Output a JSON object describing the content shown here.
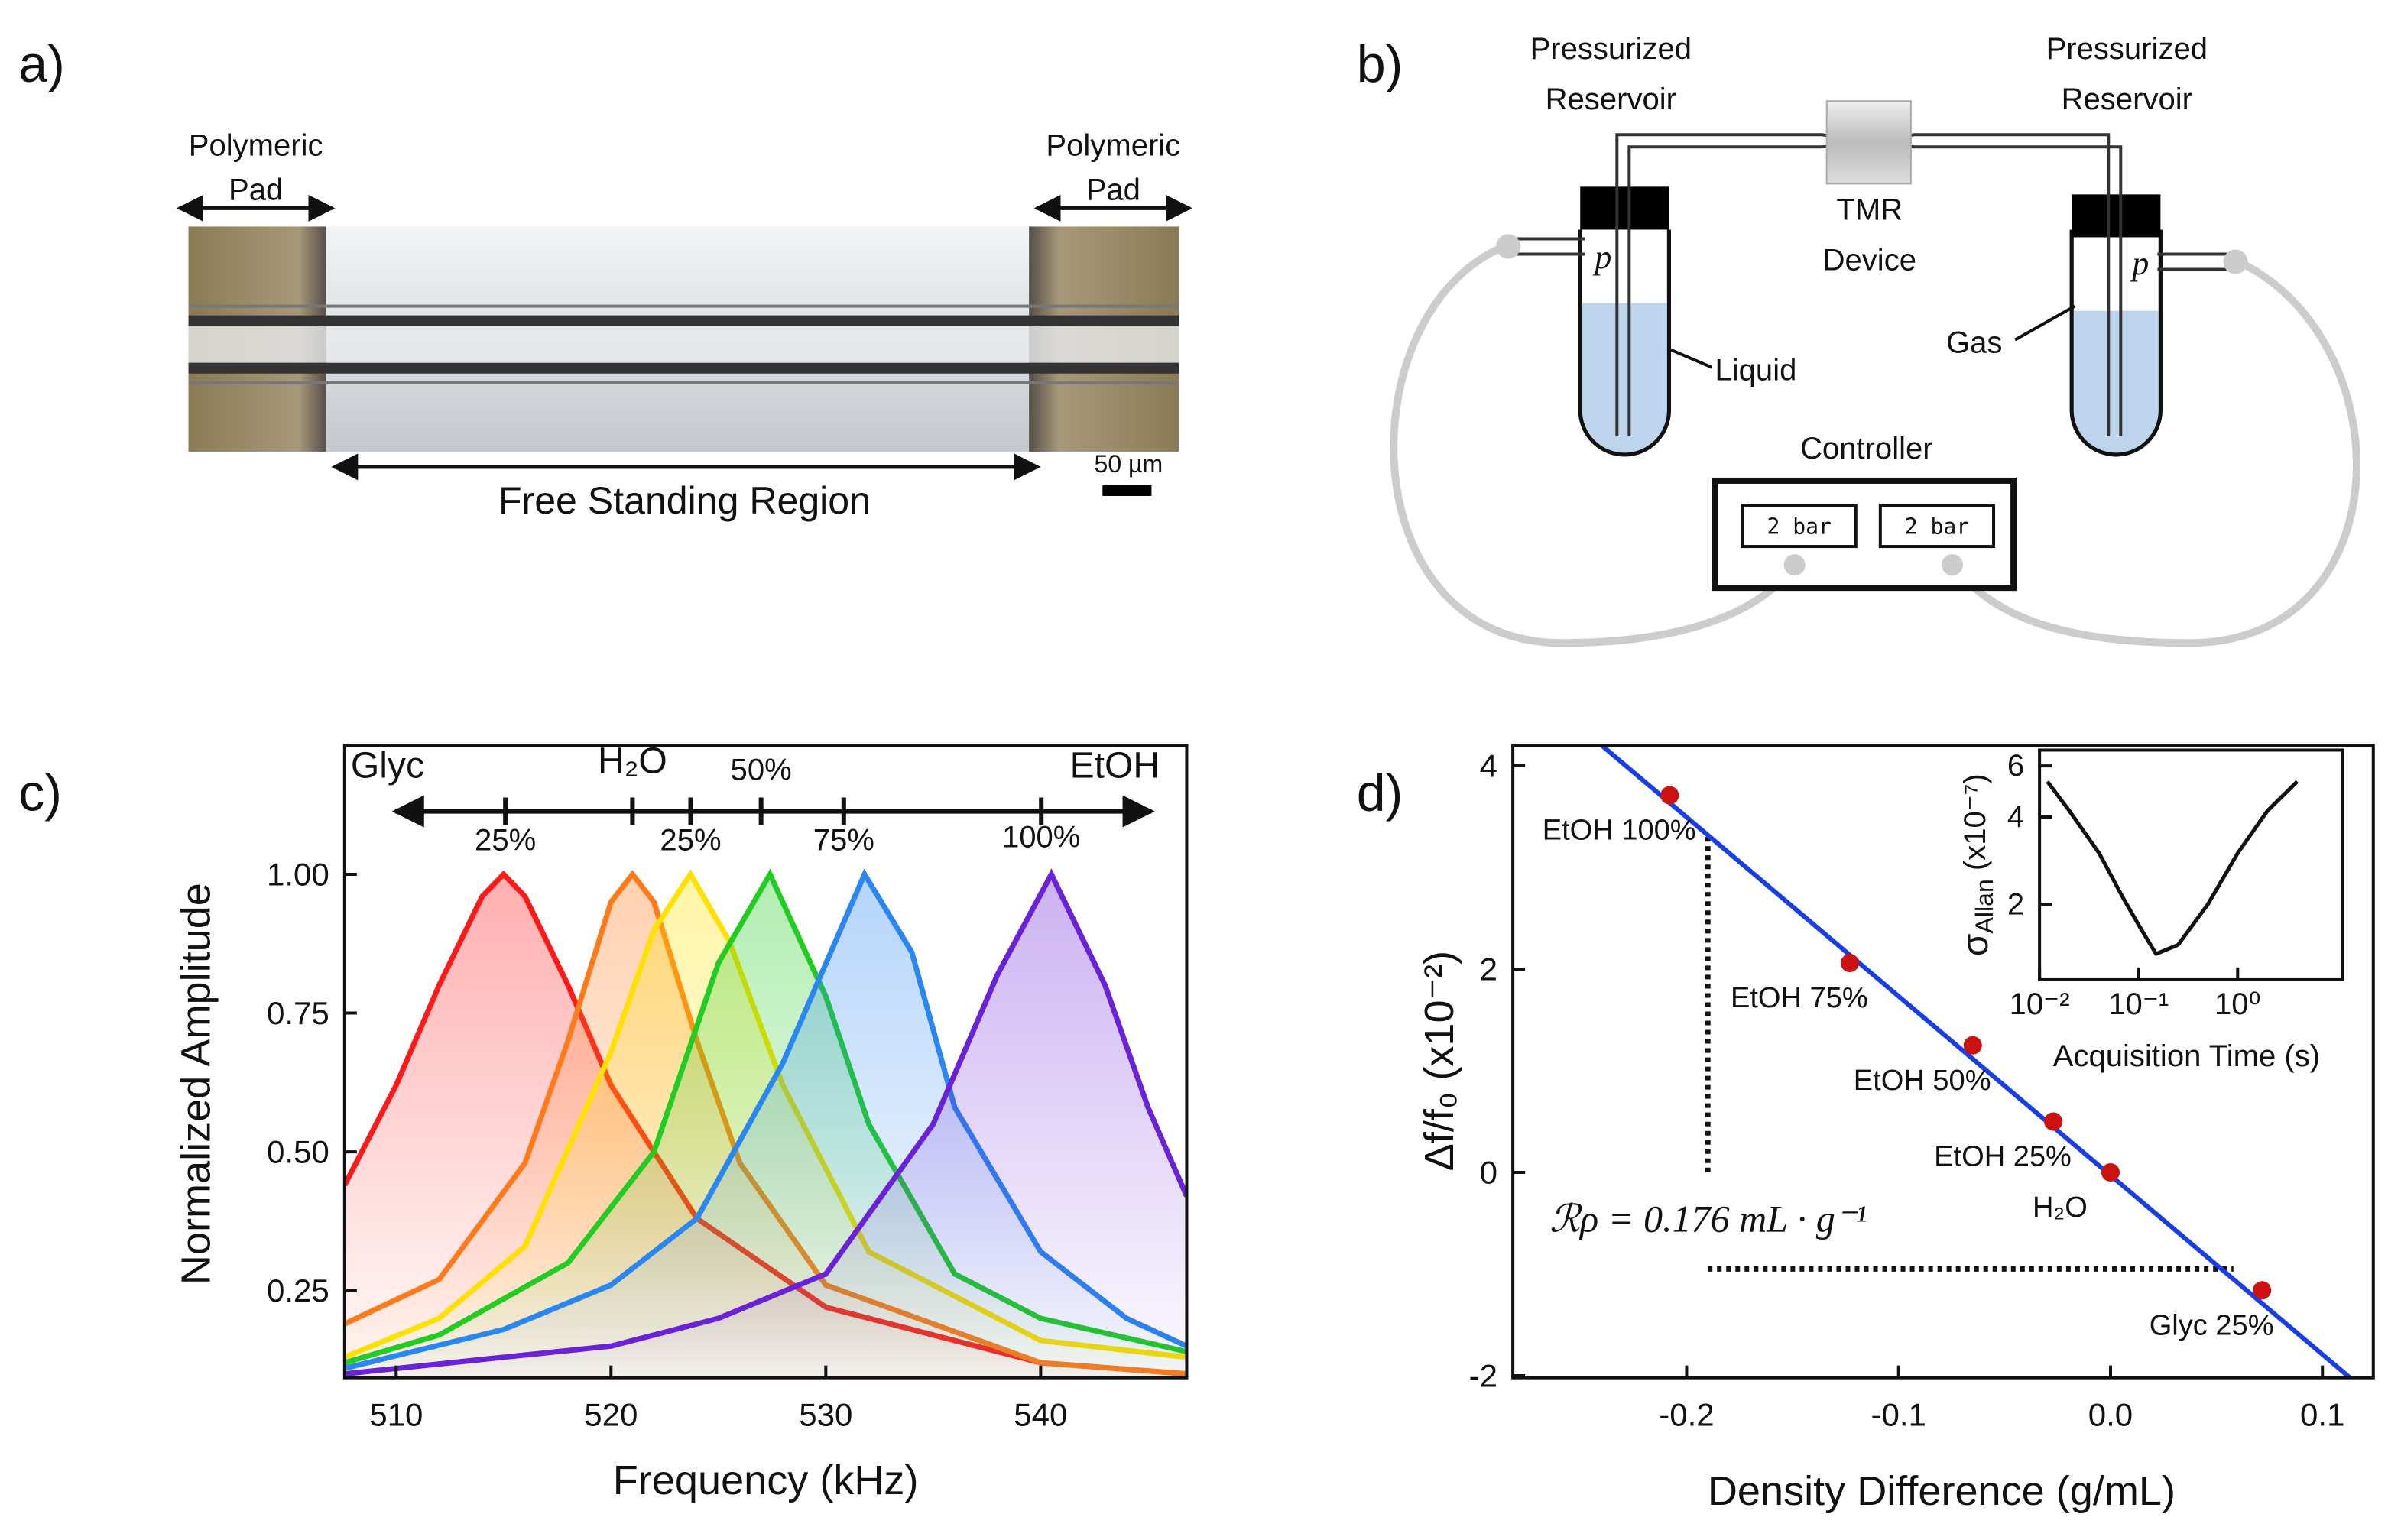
{
  "panel_labels": [
    "a)",
    "b)",
    "c)",
    "d)"
  ],
  "panel_a": {
    "left_pad": [
      "Polymeric",
      "Pad"
    ],
    "right_pad": [
      "Polymeric",
      "Pad"
    ],
    "region": "Free Standing Region",
    "scale_bar": "50 µm"
  },
  "panel_b": {
    "reservoir_left": [
      "Pressurized",
      "Reservoir"
    ],
    "reservoir_right": [
      "Pressurized",
      "Reservoir"
    ],
    "device": [
      "TMR",
      "Device"
    ],
    "liquid": "Liquid",
    "gas": "Gas",
    "pressure_symbols": [
      "p",
      "p"
    ],
    "controller": "Controller",
    "displays": [
      "2 bar",
      "2 bar"
    ]
  },
  "chart_data": [
    {
      "type": "line",
      "x_label": "Frequency (kHz)",
      "y_label": "Normalized Amplitude",
      "xlim": [
        507.6,
        546.8
      ],
      "xticks": [
        510,
        520,
        530,
        540
      ],
      "ylim": [
        0.093,
        1.232
      ],
      "yticks": [
        0.25,
        {
          "value": 0.5,
          "label": "0.50"
        },
        0.75,
        {
          "value": 1,
          "label": "1.00"
        }
      ],
      "area_fill": true,
      "composition": {
        "labels_top": [
          "Glyc",
          "H₂O",
          "50%",
          "EtOH"
        ],
        "labels_bottom": [
          "25%",
          "25%",
          "75%",
          "100%"
        ]
      },
      "series": [
        {
          "color": "#ff1a1a",
          "x": [
            507.6,
            510,
            512,
            514,
            515,
            516,
            518,
            520,
            524,
            530,
            540,
            546.8
          ],
          "values": [
            0.44,
            0.62,
            0.8,
            0.96,
            1.0,
            0.96,
            0.8,
            0.62,
            0.38,
            0.22,
            0.12,
            0.1
          ]
        },
        {
          "color": "#ff7a1a",
          "x": [
            507.6,
            512,
            516,
            518,
            520,
            521,
            522,
            524,
            526,
            530,
            540,
            546.8
          ],
          "values": [
            0.19,
            0.27,
            0.48,
            0.7,
            0.95,
            1.0,
            0.95,
            0.7,
            0.48,
            0.26,
            0.12,
            0.1
          ]
        },
        {
          "color": "#ffe000",
          "x": [
            507.6,
            512,
            516,
            520,
            522,
            523.7,
            525.5,
            528,
            532,
            540,
            546.8
          ],
          "values": [
            0.13,
            0.2,
            0.33,
            0.68,
            0.9,
            1.0,
            0.88,
            0.62,
            0.32,
            0.16,
            0.13
          ]
        },
        {
          "color": "#22cc22",
          "x": [
            507.6,
            512,
            518,
            522,
            525,
            527.4,
            530,
            532,
            536,
            540,
            546.8
          ],
          "values": [
            0.12,
            0.17,
            0.3,
            0.5,
            0.84,
            1.0,
            0.78,
            0.55,
            0.28,
            0.2,
            0.14
          ]
        },
        {
          "color": "#2a86f0",
          "x": [
            507.6,
            515,
            520,
            524,
            528,
            531.8,
            534,
            536,
            540,
            544,
            546.8
          ],
          "values": [
            0.11,
            0.18,
            0.26,
            0.38,
            0.66,
            1.0,
            0.86,
            0.58,
            0.32,
            0.2,
            0.15
          ]
        },
        {
          "color": "#6a22d8",
          "x": [
            507.6,
            515,
            520,
            525,
            530,
            535,
            538,
            540.5,
            543,
            545,
            546.8
          ],
          "values": [
            0.1,
            0.13,
            0.15,
            0.2,
            0.28,
            0.55,
            0.82,
            1.0,
            0.8,
            0.58,
            0.42
          ]
        }
      ]
    },
    {
      "type": "scatter",
      "x_label": "Density Difference (g/mL)",
      "y_label": "Δf/f₀ (x10⁻²)",
      "xlim": [
        -0.282,
        0.124
      ],
      "xticks": [
        -0.2,
        -0.1,
        {
          "value": 0,
          "label": "0.0"
        },
        0.1
      ],
      "ylim": [
        -2.02,
        4.2
      ],
      "yticks": [
        -2,
        0,
        2,
        4
      ],
      "series": [
        {
          "color": "#cc1111",
          "x": [
            -0.208,
            -0.123,
            -0.065,
            -0.027,
            0,
            0.0715
          ],
          "values": [
            3.71,
            2.06,
            1.25,
            0.5,
            0,
            -1.16
          ],
          "labels": [
            "EtOH 100%",
            "EtOH 75%",
            "EtOH 50%",
            "EtOH 25%",
            "H₂O",
            "Glyc 25%"
          ]
        }
      ],
      "fit": {
        "color": "#1a3ee6",
        "x": [
          -0.24,
          0.113
        ],
        "values": [
          4.2,
          -2.02
        ]
      },
      "guides": [
        {
          "x": [
            -0.19,
            -0.19
          ],
          "y": [
            3.3,
            0
          ]
        },
        {
          "x": [
            -0.19,
            0.058
          ],
          "y": [
            -0.95,
            -0.95
          ]
        }
      ],
      "annotation": "ℛρ = 0.176 mL · g⁻¹",
      "inset": {
        "type": "line",
        "x_label": "Acquisition Time (s)",
        "y_label": [
          "σ",
          "Allan",
          " (x10⁻⁷)"
        ],
        "log_x": true,
        "log_y": true,
        "xlim": [
          0.01,
          11.5
        ],
        "xticks": [
          {
            "value": 0.01,
            "label": "10⁻²"
          },
          {
            "value": 0.1,
            "label": "10⁻¹"
          },
          {
            "value": 1,
            "label": "10⁰"
          }
        ],
        "ylim": [
          1.1,
          6.8
        ],
        "yticks": [
          2,
          4,
          6
        ],
        "color": "#111111",
        "x": [
          0.012,
          0.02,
          0.04,
          0.07,
          0.1,
          0.15,
          0.25,
          0.5,
          1,
          2,
          4
        ],
        "values": [
          5.3,
          4.2,
          3.0,
          2.1,
          1.7,
          1.35,
          1.45,
          2.0,
          3.0,
          4.2,
          5.3
        ]
      }
    }
  ]
}
